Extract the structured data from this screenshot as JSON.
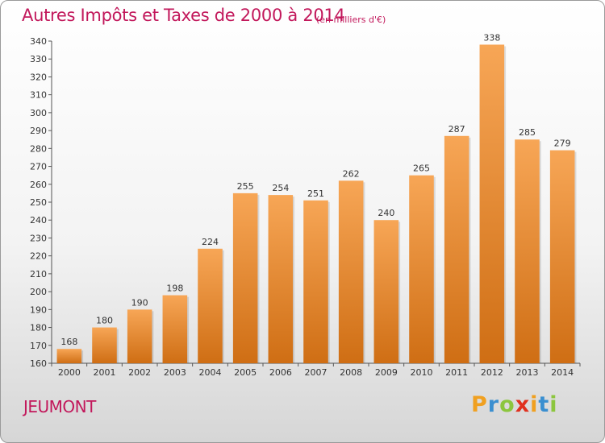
{
  "title": "Autres Impôts et Taxes de 2000 à 2014",
  "unit": "(en milliers d'€)",
  "commune": "JEUMONT",
  "brand": {
    "letters": [
      "P",
      "r",
      "o",
      "x",
      "i",
      "t",
      "i"
    ],
    "colors": [
      "#f0a020",
      "#3a8fd0",
      "#8cc63e",
      "#e0301e",
      "#f0a020",
      "#3a8fd0",
      "#8cc63e"
    ]
  },
  "colors": {
    "bar_top": "#f7a656",
    "bar_bottom": "#cf6e14",
    "title": "#c2185b"
  },
  "chart_data": {
    "type": "bar",
    "categories": [
      "2000",
      "2001",
      "2002",
      "2003",
      "2004",
      "2005",
      "2006",
      "2007",
      "2008",
      "2009",
      "2010",
      "2011",
      "2012",
      "2013",
      "2014"
    ],
    "values": [
      168,
      180,
      190,
      198,
      224,
      255,
      254,
      251,
      262,
      240,
      265,
      287,
      338,
      285,
      279
    ],
    "ylim": [
      160,
      340
    ],
    "yticks": [
      160,
      170,
      180,
      190,
      200,
      210,
      220,
      230,
      240,
      250,
      260,
      270,
      280,
      290,
      300,
      310,
      320,
      330,
      340
    ],
    "grid": false
  }
}
